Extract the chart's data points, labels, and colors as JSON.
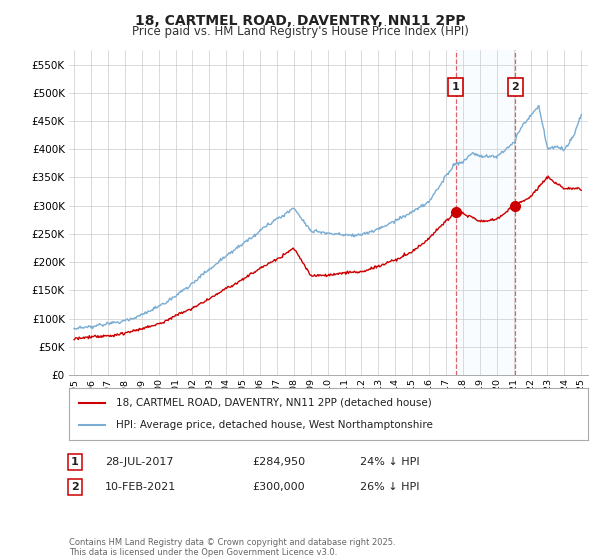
{
  "title": "18, CARTMEL ROAD, DAVENTRY, NN11 2PP",
  "subtitle": "Price paid vs. HM Land Registry's House Price Index (HPI)",
  "legend_line1": "18, CARTMEL ROAD, DAVENTRY, NN11 2PP (detached house)",
  "legend_line2": "HPI: Average price, detached house, West Northamptonshire",
  "annotation1_label": "1",
  "annotation1_date": "28-JUL-2017",
  "annotation1_price": "£284,950",
  "annotation1_hpi": "24% ↓ HPI",
  "annotation2_label": "2",
  "annotation2_date": "10-FEB-2021",
  "annotation2_price": "£300,000",
  "annotation2_hpi": "26% ↓ HPI",
  "footnote": "Contains HM Land Registry data © Crown copyright and database right 2025.\nThis data is licensed under the Open Government Licence v3.0.",
  "red_color": "#cc0000",
  "blue_color": "#7aadd4",
  "shade_color": "#ddeeff",
  "ylim_min": 0,
  "ylim_max": 575000,
  "sale1_year": 2017.57,
  "sale1_price": 284950,
  "sale2_year": 2021.11,
  "sale2_price": 300000,
  "background_color": "#ffffff",
  "grid_color": "#cccccc"
}
